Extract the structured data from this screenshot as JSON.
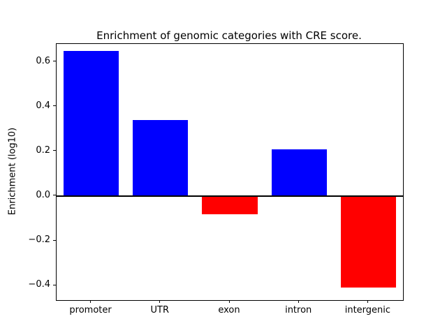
{
  "chart_data": {
    "type": "bar",
    "title": "Enrichment of genomic categories with CRE score.",
    "xlabel": "",
    "ylabel": "Enrichment (log10)",
    "categories": [
      "promoter",
      "UTR",
      "exon",
      "intron",
      "intergenic"
    ],
    "values": [
      0.65,
      0.34,
      -0.08,
      0.21,
      -0.41
    ],
    "ylim": [
      -0.465,
      0.68
    ],
    "yticks": [
      -0.4,
      -0.2,
      0.0,
      0.2,
      0.4,
      0.6
    ],
    "positive_color": "#0000ff",
    "negative_color": "#ff0000",
    "zero_line": true,
    "grid": false,
    "legend": "none"
  }
}
